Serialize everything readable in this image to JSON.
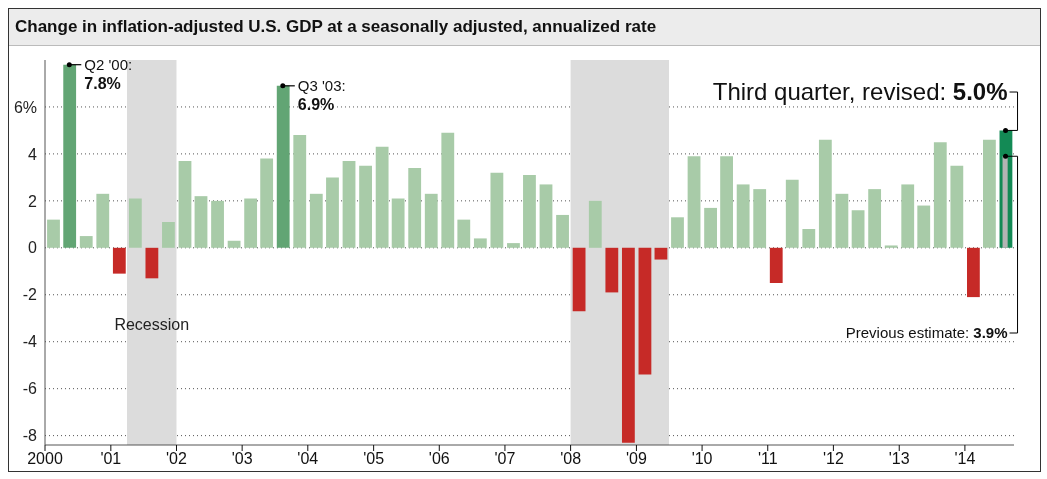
{
  "chart_data": {
    "type": "bar",
    "title": "Change in inflation-adjusted U.S. GDP at a seasonally adjusted, annualized rate",
    "x": [
      "2000-02-15",
      "2000-05-15",
      "2000-08-15",
      "2000-11-15",
      "2001-02-15",
      "2001-05-15",
      "2001-08-15",
      "2001-11-15",
      "2002-02-15",
      "2002-05-15",
      "2002-08-15",
      "2002-11-15",
      "2003-02-15",
      "2003-05-15",
      "2003-08-15",
      "2003-11-15",
      "2004-02-15",
      "2004-05-15",
      "2004-08-15",
      "2004-11-15",
      "2005-02-15",
      "2005-05-15",
      "2005-08-15",
      "2005-11-15",
      "2006-02-15",
      "2006-05-15",
      "2006-08-15",
      "2006-11-15",
      "2007-02-15",
      "2007-05-15",
      "2007-08-15",
      "2007-11-15",
      "2008-02-15",
      "2008-05-15",
      "2008-08-15",
      "2008-11-15",
      "2009-02-15",
      "2009-05-15",
      "2009-08-15",
      "2009-11-15",
      "2010-02-15",
      "2010-05-15",
      "2010-08-15",
      "2010-11-15",
      "2011-02-15",
      "2011-05-15",
      "2011-08-15",
      "2011-11-15",
      "2012-02-15",
      "2012-05-15",
      "2012-08-15",
      "2012-11-15",
      "2013-02-15",
      "2013-05-15",
      "2013-08-15",
      "2013-11-15",
      "2014-02-15",
      "2014-05-15",
      "2014-08-15"
    ],
    "series": [
      {
        "values": [
          1.2,
          7.8,
          0.5,
          2.3,
          -1.1,
          2.1,
          -1.3,
          1.1,
          3.7,
          2.2,
          2.0,
          0.3,
          2.1,
          3.8,
          6.9,
          4.8,
          2.3,
          3.0,
          3.7,
          3.5,
          4.3,
          2.1,
          3.4,
          2.3,
          4.9,
          1.2,
          0.4,
          3.2,
          0.2,
          3.1,
          2.7,
          1.4,
          -2.7,
          2.0,
          -1.9,
          -8.3,
          -5.4,
          -0.5,
          1.3,
          3.9,
          1.7,
          3.9,
          2.7,
          2.5,
          -1.5,
          2.9,
          0.8,
          4.6,
          2.3,
          1.6,
          2.5,
          0.1,
          2.7,
          1.8,
          4.5,
          3.5,
          -2.1,
          4.6,
          5.0
        ],
        "colors": [
          "#a8cba8",
          "#62a574",
          "#a8cba8",
          "#a8cba8",
          "#c62a27",
          "#a8cba8",
          "#c62a27",
          "#a8cba8",
          "#a8cba8",
          "#a8cba8",
          "#a8cba8",
          "#a8cba8",
          "#a8cba8",
          "#a8cba8",
          "#62a574",
          "#a8cba8",
          "#a8cba8",
          "#a8cba8",
          "#a8cba8",
          "#a8cba8",
          "#a8cba8",
          "#a8cba8",
          "#a8cba8",
          "#a8cba8",
          "#a8cba8",
          "#a8cba8",
          "#a8cba8",
          "#a8cba8",
          "#a8cba8",
          "#a8cba8",
          "#a8cba8",
          "#a8cba8",
          "#c62a27",
          "#a8cba8",
          "#c62a27",
          "#c62a27",
          "#c62a27",
          "#c62a27",
          "#a8cba8",
          "#a8cba8",
          "#a8cba8",
          "#a8cba8",
          "#a8cba8",
          "#a8cba8",
          "#c62a27",
          "#a8cba8",
          "#a8cba8",
          "#a8cba8",
          "#a8cba8",
          "#a8cba8",
          "#a8cba8",
          "#a8cba8",
          "#a8cba8",
          "#a8cba8",
          "#a8cba8",
          "#a8cba8",
          "#c62a27",
          "#a8cba8",
          "#138a55"
        ]
      },
      {
        "x": [
          "2014-08-15"
        ],
        "values": [
          3.9
        ],
        "color": "#b4b4b4"
      }
    ],
    "xlim": [
      "2000-01-01",
      "2014-10-01"
    ],
    "xticks": [
      {
        "value": "2000-01-01",
        "label": "2000"
      },
      {
        "value": "2001-01-01",
        "label": "'01"
      },
      {
        "value": "2002-01-01",
        "label": "'02"
      },
      {
        "value": "2003-01-01",
        "label": "'03"
      },
      {
        "value": "2004-01-01",
        "label": "'04"
      },
      {
        "value": "2005-01-01",
        "label": "'05"
      },
      {
        "value": "2006-01-01",
        "label": "'06"
      },
      {
        "value": "2007-01-01",
        "label": "'07"
      },
      {
        "value": "2008-01-01",
        "label": "'08"
      },
      {
        "value": "2009-01-01",
        "label": "'09"
      },
      {
        "value": "2010-01-01",
        "label": "'10"
      },
      {
        "value": "2011-01-01",
        "label": "'11"
      },
      {
        "value": "2012-01-01",
        "label": "'12"
      },
      {
        "value": "2013-01-01",
        "label": "'13"
      },
      {
        "value": "2014-01-01",
        "label": "'14"
      }
    ],
    "ylim": [
      -8.4,
      8
    ],
    "yticks": [
      -8,
      -6,
      -4,
      -2,
      0,
      2,
      4,
      {
        "value": 6,
        "label": "6%"
      }
    ],
    "grid": "y",
    "bands": [
      {
        "axis": "x",
        "from": "2001-04-01",
        "to": "2002-01-01",
        "label": "Recession",
        "color": "#dcdcdc"
      },
      {
        "axis": "x",
        "from": "2008-01-01",
        "to": "2009-07-01",
        "color": "#dcdcdc"
      }
    ],
    "annotations": [
      {
        "text": "Q2 '00: 7.8%",
        "x": "2000-05-15",
        "y": 7.8
      },
      {
        "text": "Q3 '03: 6.9%",
        "x": "2003-08-15",
        "y": 6.9
      },
      {
        "text": "Third quarter, revised: 5.0%",
        "x": "2014-08-15",
        "y": 5.0
      },
      {
        "text": "Previous estimate: 3.9%",
        "x": "2014-08-15",
        "y": 3.9
      }
    ]
  }
}
